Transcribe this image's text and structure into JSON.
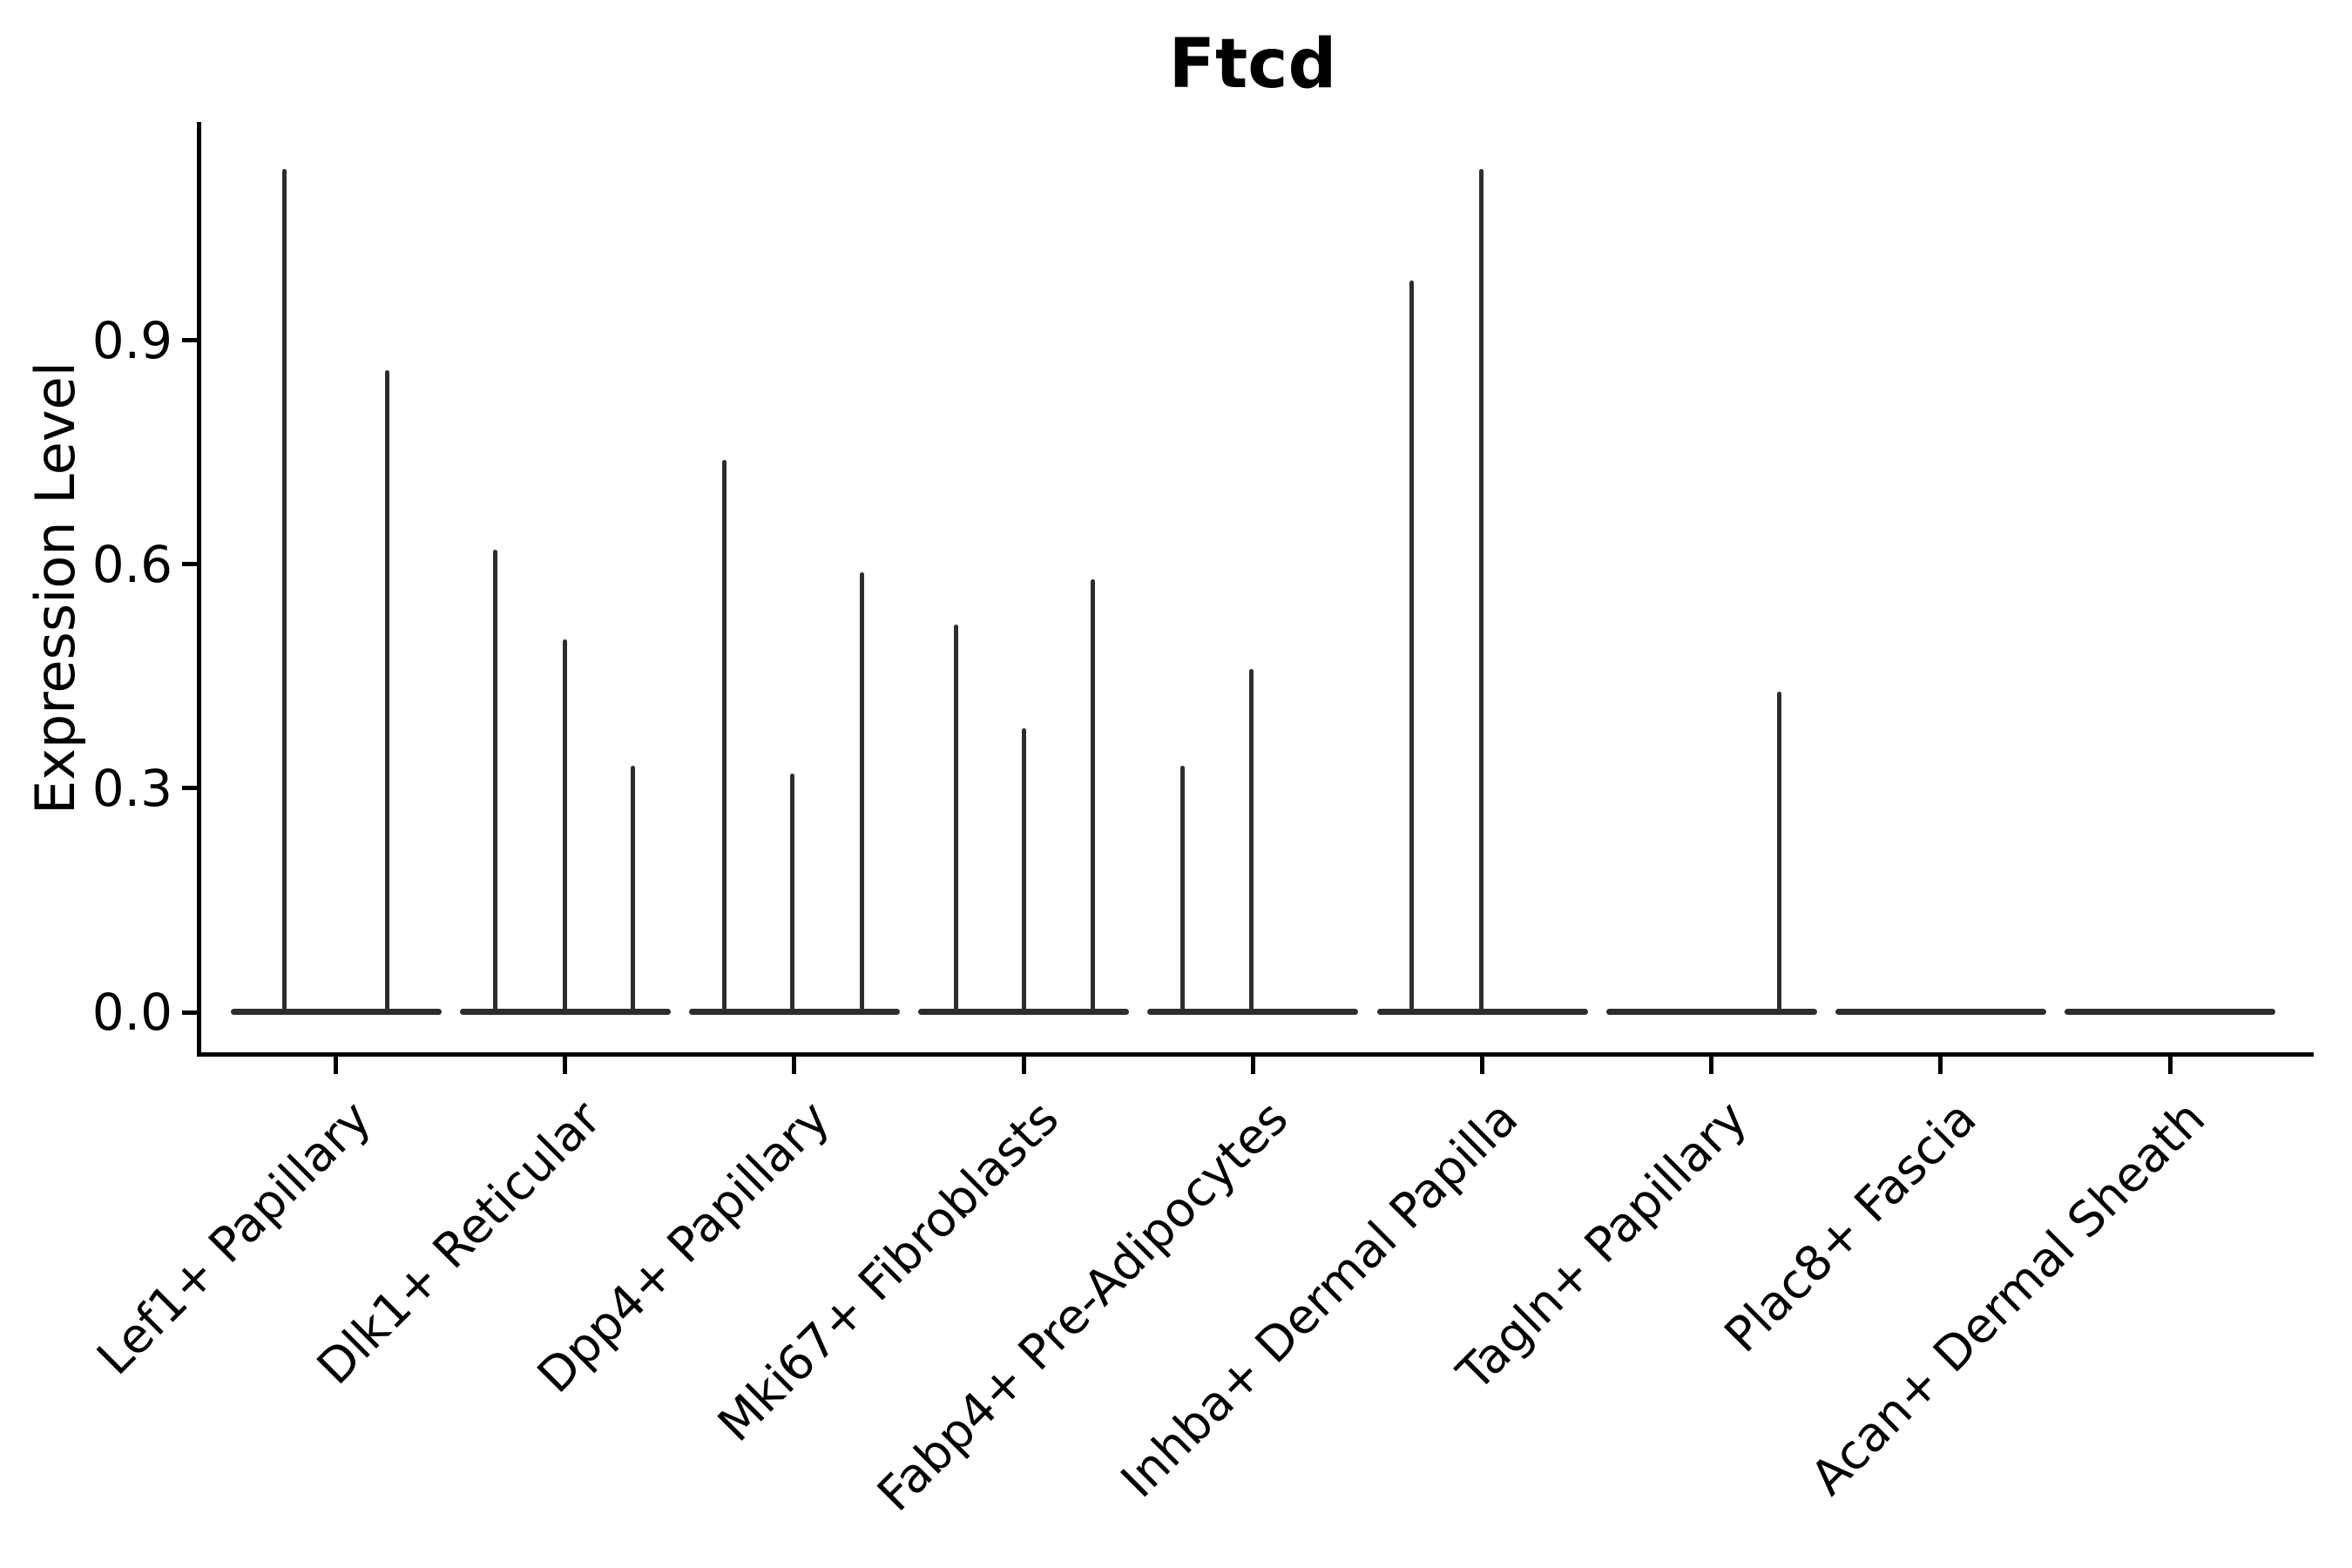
{
  "title": "Ftcd",
  "chart_data": {
    "type": "violin",
    "title": "Ftcd",
    "xlabel": "",
    "ylabel": "Expression Level",
    "ylim": [
      -0.05,
      1.19
    ],
    "yticks": [
      0.0,
      0.3,
      0.6,
      0.9
    ],
    "ytick_labels": [
      "0.0",
      "0.3",
      "0.6",
      "0.9"
    ],
    "grid": false,
    "legend": "none",
    "description": "Violin plot of Ftcd expression per fibroblast cluster; violins are collapsed at 0 with thin density spikes rising to the maximum expressing cells. Several categories contain multiple sub-violins (dodged by sample).",
    "categories": [
      "Lef1+ Papillary",
      "Dlk1+ Reticular",
      "Dpp4+ Papillary",
      "Mki67+ Fibroblasts",
      "Fabp4+ Pre-Adipocytes",
      "Inhba+ Dermal Papilla",
      "Tagln+ Papillary",
      "Plac8+ Fascia",
      "Acan+ Dermal Sheath"
    ],
    "violins": [
      {
        "category": "Lef1+ Papillary",
        "base_value": 0.0,
        "spikes": [
          {
            "offset": -59,
            "max": 1.13
          },
          {
            "offset": 59,
            "max": 0.86
          }
        ]
      },
      {
        "category": "Dlk1+ Reticular",
        "base_value": 0.0,
        "spikes": [
          {
            "offset": -80,
            "max": 0.62
          },
          {
            "offset": 0,
            "max": 0.5
          },
          {
            "offset": 78,
            "max": 0.33
          }
        ]
      },
      {
        "category": "Dpp4+ Papillary",
        "base_value": 0.0,
        "spikes": [
          {
            "offset": -80,
            "max": 0.74
          },
          {
            "offset": -2,
            "max": 0.32
          },
          {
            "offset": 78,
            "max": 0.59
          }
        ]
      },
      {
        "category": "Mki67+ Fibroblasts",
        "base_value": 0.0,
        "spikes": [
          {
            "offset": -78,
            "max": 0.52
          },
          {
            "offset": 0,
            "max": 0.38
          },
          {
            "offset": 79,
            "max": 0.58
          }
        ]
      },
      {
        "category": "Fabp4+ Pre-Adipocytes",
        "base_value": 0.0,
        "spikes": [
          {
            "offset": -81,
            "max": 0.33
          },
          {
            "offset": -2,
            "max": 0.46
          }
        ]
      },
      {
        "category": "Inhba+ Dermal Papilla",
        "base_value": 0.0,
        "spikes": [
          {
            "offset": -81,
            "max": 0.98
          },
          {
            "offset": -1,
            "max": 1.13
          }
        ]
      },
      {
        "category": "Tagln+ Papillary",
        "base_value": 0.0,
        "spikes": [
          {
            "offset": 78,
            "max": 0.43
          }
        ]
      },
      {
        "category": "Plac8+ Fascia",
        "base_value": 0.0,
        "spikes": []
      },
      {
        "category": "Acan+ Dermal Sheath",
        "base_value": 0.0,
        "spikes": []
      }
    ],
    "colors": {
      "violin": "#2d2d2d",
      "axis": "#000000",
      "text": "#000000",
      "background": "#ffffff"
    }
  }
}
